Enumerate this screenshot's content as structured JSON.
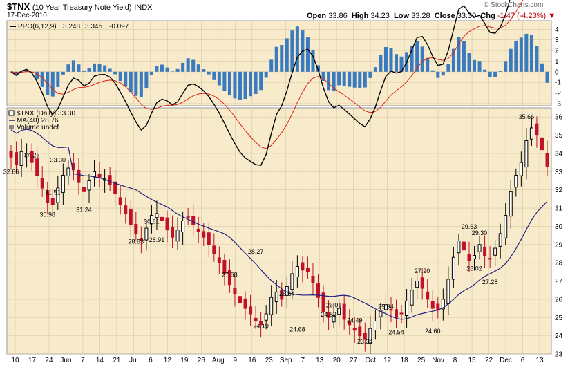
{
  "header": {
    "symbol": "$TNX",
    "description": "(10 Year Treasury Note Yield)",
    "exchange": "INDX",
    "date": "17-Dec-2010",
    "open_label": "Open",
    "open": "33.86",
    "high_label": "High",
    "high": "34.23",
    "low_label": "Low",
    "low": "33.28",
    "close_label": "Close",
    "close": "33.30",
    "chg_label": "Chg",
    "chg": "-1.47 (-4.23%)",
    "watermark": "© StockCharts.com"
  },
  "colors": {
    "panel_bg": "#f7ebcb",
    "grid": "#d8c8a0",
    "up": "#000000",
    "down": "#c0102a",
    "ma": "#202080",
    "histogram": "#3a7bc0",
    "ppo": "#000000",
    "signal": "#e02010"
  },
  "chart_data": {
    "type": "candlestick",
    "symbol": "$TNX",
    "period": "Daily",
    "last": "33.30",
    "price_legend": "$TNX (Daily) 33.30",
    "ma_legend": "MA(40) 28.76",
    "volume_legend": "Volume undef",
    "ylim": [
      23,
      36.5
    ],
    "yticks": [
      23,
      24,
      25,
      26,
      27,
      28,
      29,
      30,
      31,
      32,
      33,
      34,
      35,
      36
    ],
    "xticks": [
      "10",
      "17",
      "24",
      "Jun",
      "7",
      "14",
      "21",
      "Jul",
      "6",
      "12",
      "19",
      "26",
      "Aug",
      "9",
      "16",
      "23",
      "Sep",
      "7",
      "13",
      "20",
      "27",
      "Oct",
      "12",
      "18",
      "25",
      "Nov",
      "8",
      "15",
      "22",
      "Dec",
      "6",
      "13"
    ],
    "annotations": [
      "32.66",
      "34.25",
      "33.30",
      "30.98",
      "31.51",
      "31.24",
      "28.83",
      "30.61",
      "28.91",
      "27.68",
      "28.27",
      "26.64",
      "24.19",
      "24.68",
      "24.82",
      "26.01",
      "24.49",
      "25.94",
      "23.34",
      "24.54",
      "27.20",
      "24.60",
      "29.63",
      "28.02",
      "29.30",
      "27.28",
      "35.66"
    ],
    "price_path": [
      33.8,
      33.4,
      34.1,
      34.0,
      33.5,
      32.8,
      32.1,
      31.3,
      31.2,
      32.1,
      32.8,
      33.2,
      33.1,
      32.4,
      31.9,
      32.5,
      33.0,
      32.7,
      32.6,
      32.3,
      31.8,
      31.2,
      30.7,
      30.1,
      29.6,
      29.2,
      29.9,
      30.6,
      30.7,
      30.3,
      29.8,
      29.4,
      29.8,
      30.3,
      30.5,
      30.1,
      29.7,
      29.4,
      29.0,
      28.5,
      28.0,
      27.4,
      26.8,
      26.3,
      25.8,
      25.5,
      25.2,
      24.8,
      24.6,
      25.2,
      26.1,
      26.4,
      26.0,
      26.7,
      27.4,
      27.8,
      27.6,
      27.5,
      26.9,
      26.1,
      25.3,
      25.0,
      25.1,
      25.5,
      24.9,
      24.6,
      24.3,
      24.0,
      23.8,
      24.4,
      24.8,
      25.4,
      25.7,
      25.4,
      25.0,
      25.2,
      25.9,
      26.5,
      27.0,
      26.6,
      26.0,
      25.5,
      25.4,
      26.0,
      27.1,
      28.3,
      29.2,
      28.7,
      28.1,
      28.4,
      29.0,
      28.4,
      28.2,
      28.8,
      29.6,
      30.6,
      31.9,
      32.8,
      33.5,
      34.7,
      35.4,
      35.0,
      34.2,
      33.3
    ],
    "ma40_legend_value": 28.76,
    "ppo": {
      "legend_name": "PPO(6,12,9)",
      "ppo": "3.248",
      "signal": "3.345",
      "histogram": "-0.097",
      "ylim": [
        -3.2,
        4.8
      ],
      "yticks": [
        -3,
        -2,
        -1,
        0,
        1,
        2,
        3,
        4
      ]
    }
  }
}
